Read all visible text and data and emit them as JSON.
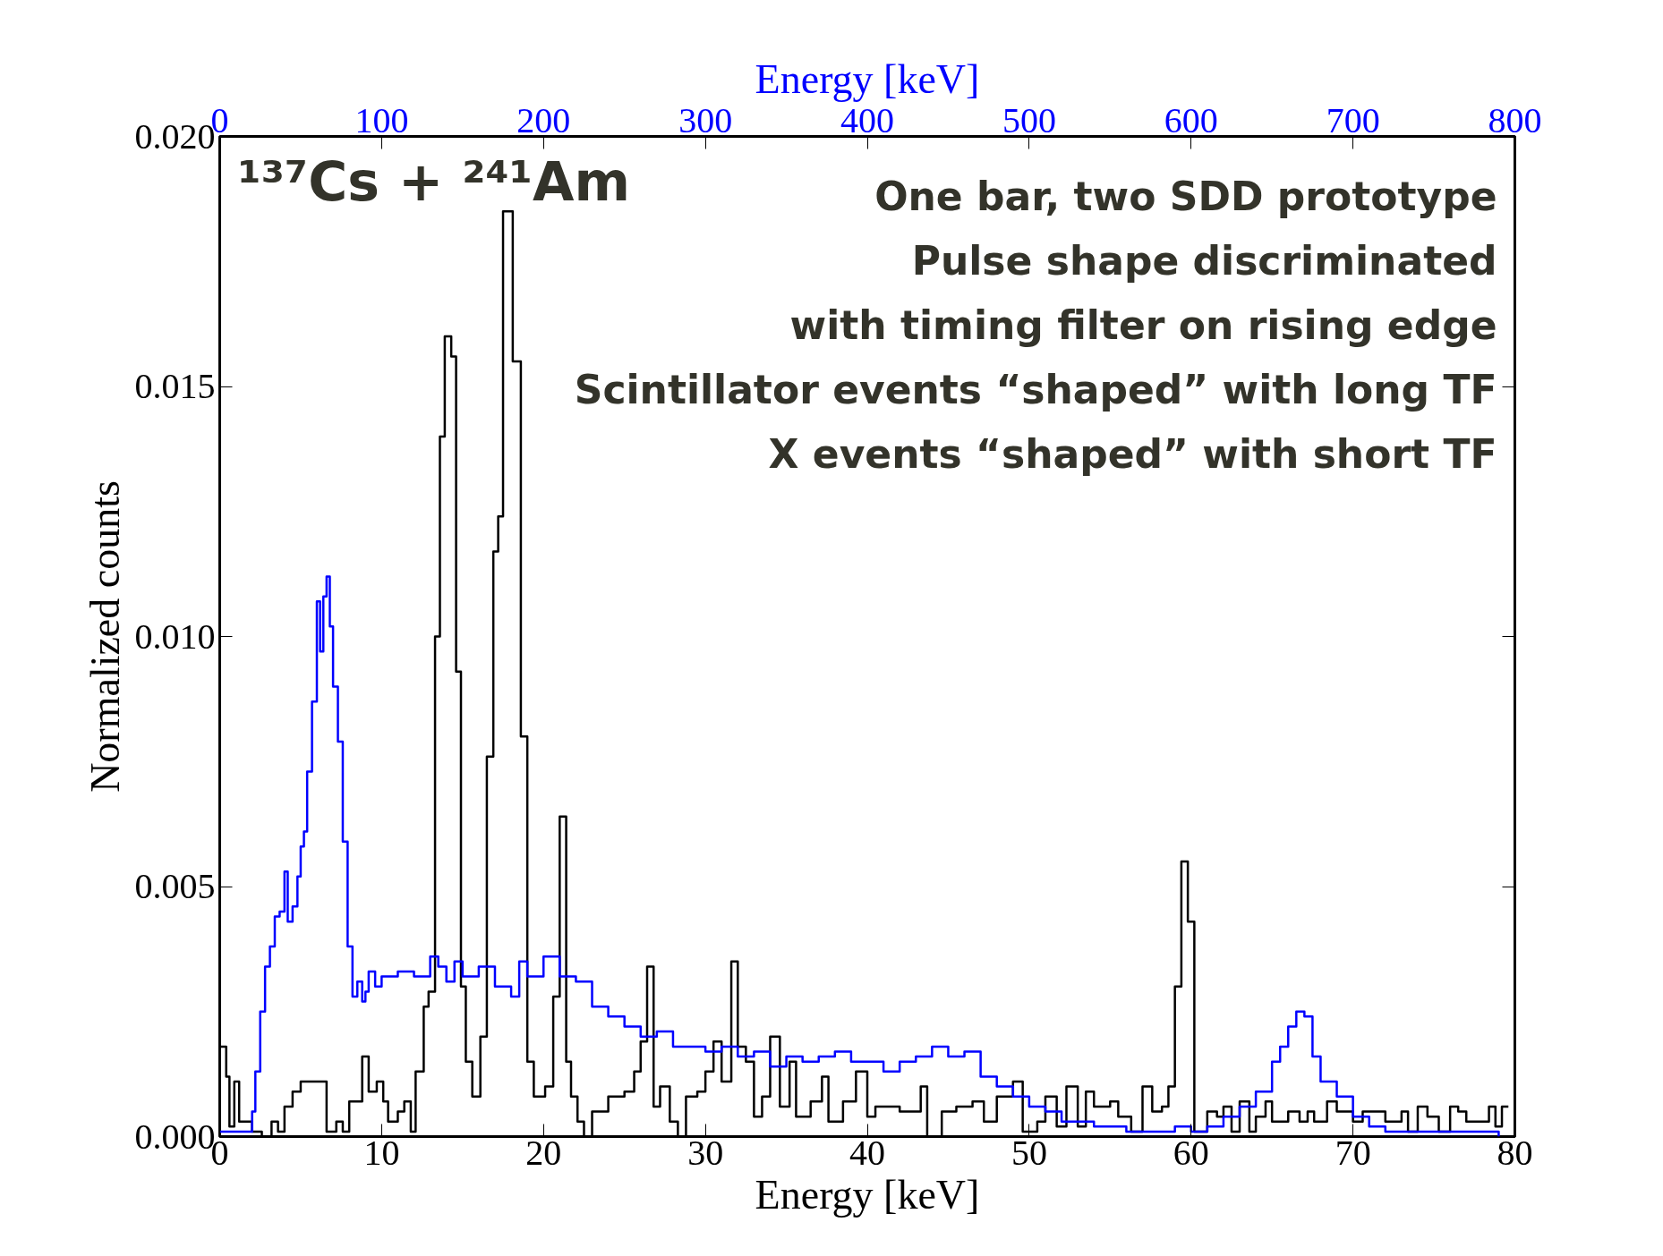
{
  "chart_data": {
    "type": "step",
    "xlabel": "Energy [keV]",
    "x2label": "Energy [keV]",
    "ylabel": "Normalized counts",
    "xlim": [
      0,
      80
    ],
    "xticks": [
      0,
      10,
      20,
      30,
      40,
      50,
      60,
      70,
      80
    ],
    "x2lim": [
      0,
      800
    ],
    "x2ticks": [
      0,
      100,
      200,
      300,
      400,
      500,
      600,
      700,
      800
    ],
    "ylim": [
      0,
      0.02
    ],
    "yticks": [
      {
        "value": 0,
        "label": "0.000"
      },
      {
        "value": 0.005,
        "label": "0.005"
      },
      {
        "value": 0.01,
        "label": "0.010"
      },
      {
        "value": 0.015,
        "label": "0.015"
      },
      {
        "value": 0.02,
        "label": "0.020"
      }
    ],
    "grid": false,
    "annotations": [
      "¹³⁷Cs + ²⁴¹Am",
      "One bar, two SDD prototype",
      "Pulse shape discriminated",
      "with timing filter on rising edge",
      "Scintillator events “shaped” with long TF",
      "X events “shaped” with short TF"
    ],
    "series": [
      {
        "color": "#000000",
        "x": [
          0,
          0.4,
          0.6,
          0.9,
          1.2,
          2,
          2.6,
          3.2,
          3.6,
          4,
          4.5,
          5,
          6,
          6.6,
          7.2,
          7.6,
          8,
          8.8,
          9.2,
          9.7,
          10.1,
          10.4,
          11,
          11.4,
          11.8,
          12.1,
          12.6,
          12.9,
          13.3,
          13.6,
          13.9,
          14.3,
          14.6,
          14.9,
          15.2,
          15.6,
          16.1,
          16.5,
          16.9,
          17.2,
          17.5,
          18.1,
          18.6,
          19,
          19.4,
          20.1,
          20.6,
          21,
          21.4,
          21.7,
          22.1,
          22.5,
          23,
          24,
          25,
          25.6,
          26,
          26.4,
          26.8,
          27.2,
          27.8,
          28.3,
          28.8,
          29.5,
          30,
          30.5,
          31,
          31.6,
          32,
          32.5,
          33,
          33.5,
          34,
          34.6,
          35.2,
          35.6,
          36.5,
          37.2,
          37.6,
          38.5,
          39.3,
          40,
          40.5,
          42,
          43.3,
          43.7,
          44.6,
          45.5,
          46.5,
          47.2,
          48,
          49,
          49.6,
          50.5,
          51,
          51.7,
          52.3,
          53,
          53.5,
          54,
          55,
          55.5,
          56.3,
          57,
          57.6,
          58.2,
          58.6,
          59,
          59.4,
          59.8,
          60.2,
          61,
          61.6,
          62,
          62.5,
          63,
          63.6,
          64,
          64.6,
          65,
          66,
          66.7,
          67.2,
          67.6,
          68.4,
          69,
          70,
          70.6,
          72,
          73,
          73.4,
          74,
          74.6,
          75.3,
          76,
          76.5,
          77,
          78,
          78.4,
          78.8,
          79.2,
          79.6
        ],
        "values": [
          0.0018,
          0.0012,
          0.0002,
          0.0011,
          0.0003,
          0.0001,
          0.0,
          0.0003,
          0.0001,
          0.0006,
          0.0009,
          0.0011,
          0.0011,
          0.0001,
          0.0003,
          0.0001,
          0.0007,
          0.0016,
          0.0009,
          0.0011,
          0.0007,
          0.0003,
          0.0005,
          0.0007,
          0.0001,
          0.0013,
          0.0026,
          0.0029,
          0.01,
          0.014,
          0.016,
          0.0156,
          0.0093,
          0.003,
          0.0015,
          0.0008,
          0.002,
          0.0076,
          0.0117,
          0.0124,
          0.0185,
          0.0155,
          0.008,
          0.0015,
          0.0008,
          0.001,
          0.0028,
          0.0064,
          0.0015,
          0.0008,
          0.0003,
          0.0,
          0.0005,
          0.0008,
          0.0009,
          0.0013,
          0.0019,
          0.0034,
          0.0006,
          0.001,
          0.0003,
          0.0,
          0.0008,
          0.0009,
          0.0013,
          0.0019,
          0.0011,
          0.0035,
          0.0018,
          0.0015,
          0.0004,
          0.0008,
          0.002,
          0.0006,
          0.0015,
          0.0004,
          0.0007,
          0.0012,
          0.0003,
          0.0007,
          0.0013,
          0.0004,
          0.0006,
          0.0005,
          0.001,
          0.0,
          0.0005,
          0.0006,
          0.0007,
          0.0003,
          0.0008,
          0.0011,
          0.0001,
          0.0003,
          0.0008,
          0.0002,
          0.001,
          0.0002,
          0.0009,
          0.0006,
          0.0007,
          0.0004,
          0.0001,
          0.001,
          0.0005,
          0.0006,
          0.001,
          0.003,
          0.0055,
          0.0043,
          0.0001,
          0.0005,
          0.0004,
          0.0006,
          0.0001,
          0.0007,
          0.0001,
          0.0004,
          0.0007,
          0.0003,
          0.0005,
          0.0003,
          0.0005,
          0.0003,
          0.0007,
          0.0005,
          0.0003,
          0.0005,
          0.0003,
          0.0005,
          0.0001,
          0.0006,
          0.0004,
          0.0001,
          0.0006,
          0.0005,
          0.0003,
          0.0003,
          0.0006,
          0.0002,
          0.0006,
          0.0006
        ]
      },
      {
        "color": "#0000ff",
        "axis": "x2",
        "x": [
          0,
          15,
          20,
          22,
          25,
          28,
          31,
          34,
          37,
          40,
          42,
          45,
          48,
          50,
          52,
          54,
          57,
          60,
          62,
          64,
          66,
          68,
          70,
          73,
          76,
          79,
          82,
          85,
          88,
          90,
          92,
          96,
          100,
          110,
          120,
          130,
          135,
          140,
          145,
          150,
          160,
          170,
          180,
          185,
          190,
          200,
          210,
          220,
          230,
          240,
          250,
          260,
          270,
          280,
          290,
          300,
          310,
          320,
          330,
          340,
          350,
          360,
          370,
          380,
          390,
          400,
          410,
          420,
          430,
          440,
          450,
          460,
          470,
          480,
          490,
          500,
          510,
          520,
          530,
          540,
          550,
          560,
          570,
          580,
          590,
          600,
          610,
          620,
          630,
          640,
          650,
          655,
          660,
          665,
          670,
          675,
          680,
          690,
          700,
          710,
          720,
          740,
          790
        ],
        "values": [
          0.0001,
          0.0001,
          0.0005,
          0.0013,
          0.0025,
          0.0034,
          0.0038,
          0.0044,
          0.0045,
          0.0053,
          0.0043,
          0.0046,
          0.0052,
          0.0058,
          0.0061,
          0.0073,
          0.0087,
          0.0107,
          0.0097,
          0.0108,
          0.0112,
          0.0102,
          0.009,
          0.0079,
          0.0059,
          0.0038,
          0.0028,
          0.0031,
          0.0027,
          0.0029,
          0.0033,
          0.003,
          0.0032,
          0.0033,
          0.0032,
          0.0036,
          0.0034,
          0.0031,
          0.0035,
          0.0032,
          0.0034,
          0.003,
          0.0028,
          0.0035,
          0.0032,
          0.0036,
          0.0032,
          0.0031,
          0.0026,
          0.0024,
          0.0022,
          0.002,
          0.0021,
          0.0018,
          0.0018,
          0.0017,
          0.0018,
          0.0016,
          0.0017,
          0.0014,
          0.0016,
          0.0015,
          0.0016,
          0.0017,
          0.0015,
          0.0015,
          0.0013,
          0.0015,
          0.0016,
          0.0018,
          0.0016,
          0.0017,
          0.0012,
          0.001,
          0.0008,
          0.0006,
          0.0005,
          0.0003,
          0.0003,
          0.0002,
          0.0002,
          0.0001,
          0.0001,
          0.0001,
          0.0002,
          0.0001,
          0.0002,
          0.0004,
          0.0006,
          0.0009,
          0.0015,
          0.0018,
          0.0022,
          0.0025,
          0.0024,
          0.0016,
          0.0011,
          0.0008,
          0.0004,
          0.0002,
          0.0001,
          0.0001,
          0.0
        ]
      }
    ]
  }
}
